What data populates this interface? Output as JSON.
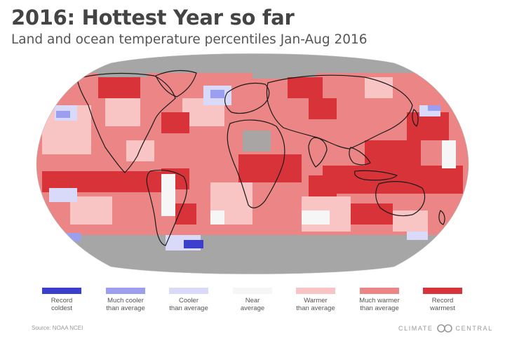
{
  "header": {
    "title": "2016: Hottest Year so far",
    "subtitle": "Land and ocean temperature percentiles Jan-Aug 2016"
  },
  "map": {
    "projection": "robinson",
    "no_data_color": "#a6a6a6",
    "regions": [
      {
        "category": "much-warmer"
      },
      {
        "category": "record-warmest"
      },
      {
        "category": "warmer"
      },
      {
        "category": "near-average"
      },
      {
        "category": "cooler"
      },
      {
        "category": "much-cooler"
      },
      {
        "category": "record-coldest"
      },
      {
        "category": "no-data"
      }
    ]
  },
  "legend": {
    "items": [
      {
        "key": "record-coldest",
        "color": "#3b3fcc",
        "line1": "Record",
        "line2": "coldest"
      },
      {
        "key": "much-cooler",
        "color": "#9c9ef0",
        "line1": "Much cooler",
        "line2": "than average"
      },
      {
        "key": "cooler",
        "color": "#d9d9fa",
        "line1": "Cooler",
        "line2": "than average"
      },
      {
        "key": "near-average",
        "color": "#f6f6f6",
        "line1": "Near",
        "line2": "average"
      },
      {
        "key": "warmer",
        "color": "#f8c4c4",
        "line1": "Warmer",
        "line2": "than average"
      },
      {
        "key": "much-warmer",
        "color": "#ec8585",
        "line1": "Much warmer",
        "line2": "than average"
      },
      {
        "key": "record-warmest",
        "color": "#d9333a",
        "line1": "Record",
        "line2": "warmest"
      }
    ]
  },
  "footer": {
    "source": "Source: NOAA NCEI",
    "brand_left": "CLIMATE",
    "brand_right": "CENTRAL"
  }
}
